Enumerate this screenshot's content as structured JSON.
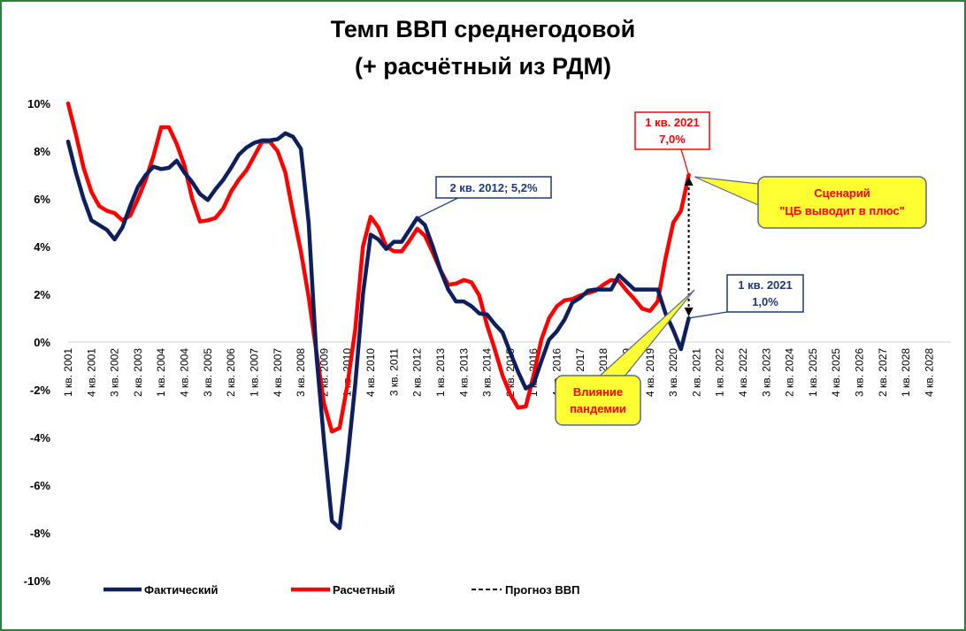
{
  "chart_data": {
    "type": "line",
    "title": "Темп ВВП среднегодовой",
    "subtitle": "(+ расчётный из РДМ)",
    "ylim": [
      -10,
      10
    ],
    "yticks": [
      "10%",
      "8%",
      "6%",
      "4%",
      "2%",
      "0%",
      "-2%",
      "-4%",
      "-6%",
      "-8%",
      "-10%"
    ],
    "ytick_values": [
      10,
      8,
      6,
      4,
      2,
      0,
      -2,
      -4,
      -6,
      -8,
      -10
    ],
    "x_tick_labels": [
      "1 кв. 2001",
      "4 кв. 2001",
      "3 кв. 2002",
      "2 кв. 2003",
      "1 кв. 2004",
      "4 кв. 2004",
      "3 кв. 2005",
      "2 кв. 2006",
      "1 кв. 2007",
      "4 кв. 2007",
      "3 кв. 2008",
      "2 кв. 2009",
      "1 кв. 2010",
      "4 кв. 2010",
      "3 кв. 2011",
      "2 кв. 2012",
      "1 кв. 2013",
      "4 кв. 2013",
      "3 кв. 2014",
      "2 кв. 2015",
      "1 кв. 2016",
      "4 кв. 2016",
      "3 кв. 2017",
      "2 кв. 2018",
      "1 кв. 2019",
      "4 кв. 2019",
      "3 кв. 2020",
      "2 кв. 2021",
      "1 кв. 2022",
      "4 кв. 2022",
      "3 кв. 2023",
      "2 кв. 2024",
      "1 кв. 2025",
      "4 кв. 2025",
      "3 кв. 2026",
      "2 кв. 2027",
      "1 кв. 2028",
      "4 кв. 2028"
    ],
    "grid": false,
    "legend_position": "bottom",
    "series": [
      {
        "name": "Фактический",
        "color": "#0d1f5c",
        "x_start": "1 кв. 2001",
        "values": [
          8.4,
          7.1,
          6.0,
          5.1,
          4.9,
          4.7,
          4.3,
          4.8,
          5.7,
          6.5,
          7.0,
          7.35,
          7.25,
          7.3,
          7.6,
          7.1,
          6.7,
          6.2,
          5.95,
          6.4,
          6.8,
          7.3,
          7.85,
          8.15,
          8.35,
          8.45,
          8.45,
          8.5,
          8.75,
          8.6,
          8.1,
          5.0,
          -0.5,
          -4.2,
          -7.5,
          -7.8,
          -5.0,
          -1.8,
          2.0,
          4.5,
          4.3,
          3.9,
          4.2,
          4.2,
          4.7,
          5.2,
          4.9,
          4.0,
          3.0,
          2.2,
          1.7,
          1.7,
          1.5,
          1.2,
          1.15,
          0.75,
          0.4,
          -0.45,
          -1.25,
          -1.95,
          -1.75,
          -0.8,
          0.1,
          0.45,
          0.95,
          1.65,
          1.85,
          2.15,
          2.2,
          2.2,
          2.2,
          2.8,
          2.5,
          2.2,
          2.2,
          2.2,
          2.2,
          1.2,
          0.5,
          -0.3,
          1.0
        ]
      },
      {
        "name": "Расчетный",
        "color": "#ff0000",
        "x_start": "1 кв. 2001",
        "values": [
          10.0,
          8.7,
          7.3,
          6.3,
          5.7,
          5.5,
          5.4,
          5.1,
          5.3,
          6.0,
          6.8,
          7.8,
          9.0,
          9.0,
          8.3,
          7.4,
          6.0,
          5.05,
          5.1,
          5.2,
          5.6,
          6.3,
          6.8,
          7.2,
          7.8,
          8.4,
          8.4,
          8.0,
          7.1,
          5.4,
          3.8,
          1.9,
          -0.4,
          -2.6,
          -3.75,
          -3.6,
          -1.8,
          0.5,
          4.0,
          5.25,
          4.8,
          4.0,
          3.8,
          3.8,
          4.25,
          4.75,
          4.45,
          3.75,
          3.0,
          2.4,
          2.45,
          2.6,
          2.5,
          1.95,
          0.7,
          -0.3,
          -1.4,
          -2.2,
          -2.75,
          -2.7,
          -1.4,
          0.1,
          1.0,
          1.5,
          1.75,
          1.8,
          1.95,
          2.05,
          2.15,
          2.4,
          2.6,
          2.55,
          2.15,
          1.8,
          1.4,
          1.3,
          1.7,
          3.5,
          5.0,
          5.5,
          7.0
        ]
      },
      {
        "name": "Прогноз ВВП",
        "color": "#000000",
        "dashed": true,
        "values": []
      }
    ],
    "annotations": [
      {
        "text": "2 кв. 2012; 5,2%",
        "color": "#1f3a7a"
      },
      {
        "text": "1 кв. 2021",
        "text2": "7,0%",
        "color": "#ff0000"
      },
      {
        "text": "1 кв. 2021",
        "text2": "1,0%",
        "color": "#1f3a7a"
      },
      {
        "text": "Сценарий",
        "text2": "\"ЦБ выводит в плюс\"",
        "color": "#ff0000",
        "fill": "#ffff33"
      },
      {
        "text": "Влияние",
        "text2": "пандемии",
        "color": "#ff0000",
        "fill": "#ffff33"
      }
    ]
  }
}
